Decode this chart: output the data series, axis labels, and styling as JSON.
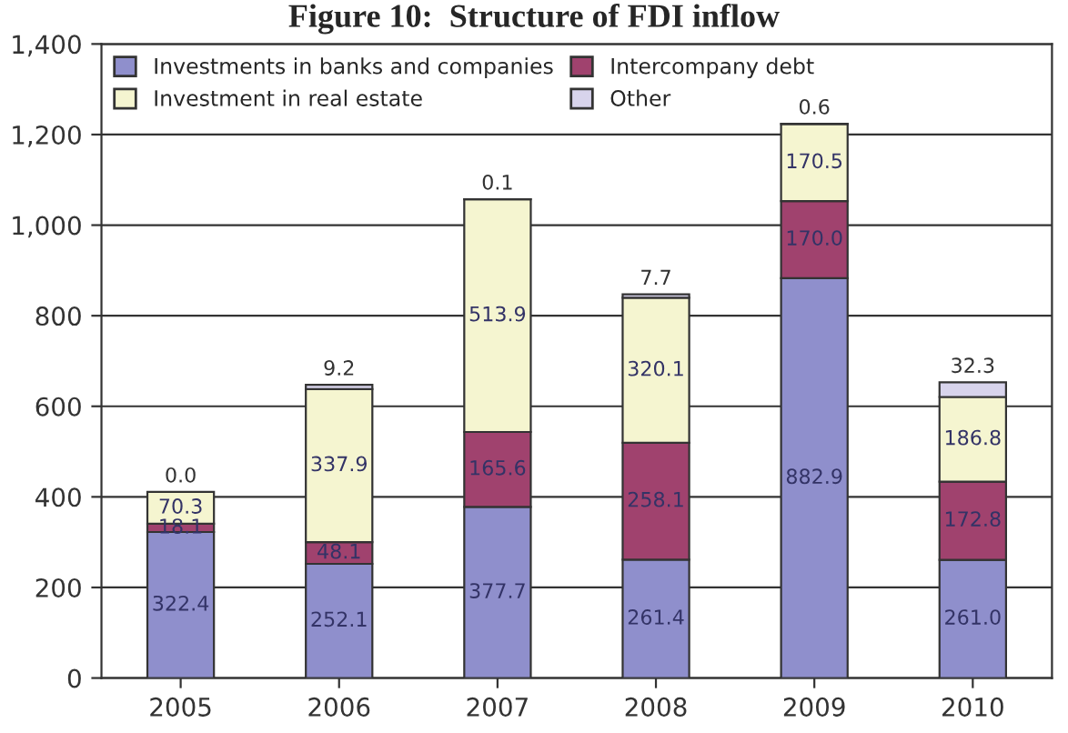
{
  "chart_data": {
    "type": "bar",
    "title": "Figure 10:  Structure of FDI inflow",
    "stacked": true,
    "categories": [
      "2005",
      "2006",
      "2007",
      "2008",
      "2009",
      "2010"
    ],
    "series": [
      {
        "name": "Investments in banks and companies",
        "color": "#8f8fcc",
        "values": [
          322.4,
          252.1,
          377.7,
          261.4,
          882.9,
          261.0
        ],
        "value_labels": [
          "322.4",
          "252.1",
          "377.7",
          "261.4",
          "882.9",
          "261.0"
        ]
      },
      {
        "name": "Intercompany debt",
        "color": "#a0426e",
        "values": [
          18.1,
          48.1,
          165.6,
          258.1,
          170.0,
          172.8
        ],
        "value_labels": [
          "18.1",
          "48.1",
          "165.6",
          "258.1",
          "170.0",
          "172.8"
        ]
      },
      {
        "name": "Investment in real estate",
        "color": "#f5f5d0",
        "values": [
          70.3,
          337.9,
          513.9,
          320.1,
          170.5,
          186.8
        ],
        "value_labels": [
          "70.3",
          "337.9",
          "513.9",
          "320.1",
          "170.5",
          "186.8"
        ]
      },
      {
        "name": "Other",
        "color": "#d8d4ec",
        "values": [
          0.0,
          9.2,
          0.1,
          7.7,
          0.6,
          32.3
        ],
        "value_labels": [
          "0.0",
          "9.2",
          "0.1",
          "7.7",
          "0.6",
          "32.3"
        ]
      }
    ],
    "ylim": [
      0,
      1400
    ],
    "yticks": [
      0,
      200,
      400,
      600,
      800,
      {
        "value": 1000,
        "label": "1,000"
      },
      {
        "value": 1200,
        "label": "1,200"
      },
      {
        "value": 1400,
        "label": "1,400"
      }
    ],
    "grid": "y",
    "legend": "top left"
  }
}
